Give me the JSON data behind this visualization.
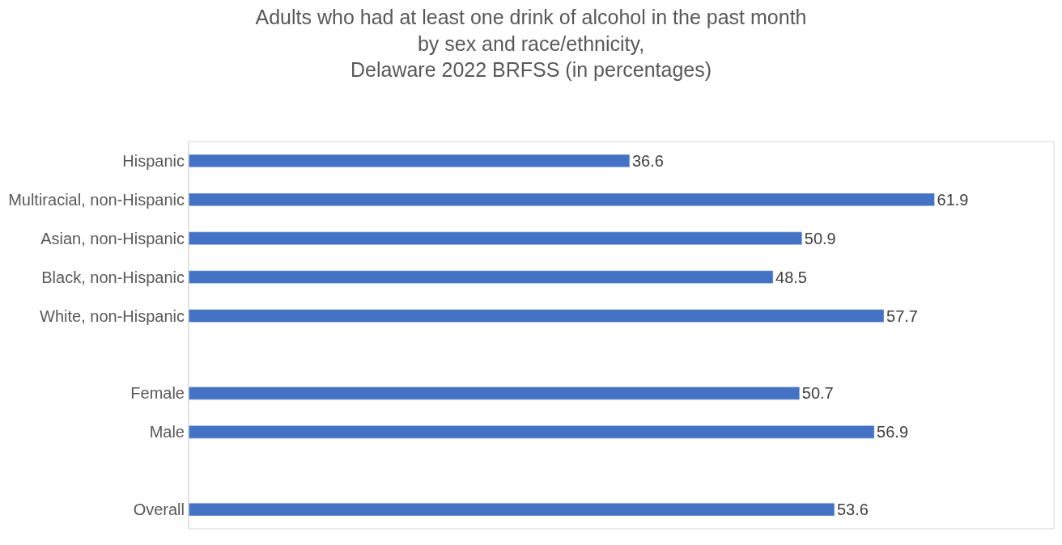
{
  "chart_data": {
    "type": "bar",
    "orientation": "horizontal",
    "title": "Adults who had at least one drink of alcohol in the past month\nby sex and race/ethnicity,\nDelaware 2022 BRFSS (in percentages)",
    "categories": [
      "Hispanic",
      "Multiracial, non-Hispanic",
      "Asian, non-Hispanic",
      "Black, non-Hispanic",
      "White, non-Hispanic",
      null,
      "Female",
      "Male",
      null,
      "Overall"
    ],
    "values": [
      36.6,
      61.9,
      50.9,
      48.5,
      57.7,
      null,
      50.7,
      56.9,
      null,
      53.6
    ],
    "color": "#4472c4",
    "data_labels": true,
    "tick_labels": "y",
    "legend": false
  }
}
